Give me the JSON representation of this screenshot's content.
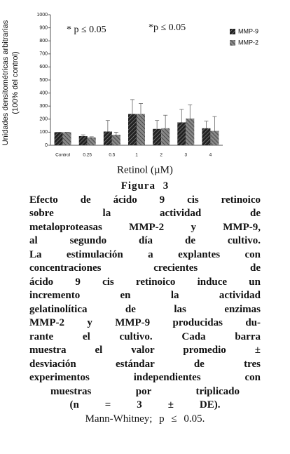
{
  "chart_data": {
    "type": "bar",
    "ylabel": [
      "Unidades densitométricas arbitrarias",
      "(100% del control)"
    ],
    "xlabel": "Retinol (µM)",
    "annotations": [
      "* p ≤ 0.05",
      "*p ≤ 0.05"
    ],
    "categories": [
      "Control",
      "0.25",
      "0.5",
      "1",
      "2",
      "3",
      "4"
    ],
    "series": [
      {
        "name": "MMP-9",
        "color": "#222222",
        "values": [
          100,
          70,
          105,
          240,
          125,
          175,
          130
        ],
        "errors": [
          0,
          10,
          85,
          110,
          65,
          100,
          55
        ]
      },
      {
        "name": "MMP-2",
        "color": "#777777",
        "values": [
          100,
          60,
          80,
          240,
          130,
          205,
          110
        ],
        "errors": [
          0,
          5,
          20,
          80,
          100,
          105,
          110
        ]
      }
    ],
    "ylim": [
      0,
      1000
    ],
    "yticks": [
      0,
      100,
      200,
      300,
      400,
      500,
      600,
      700,
      800,
      900,
      1000
    ],
    "grid": false
  },
  "caption": {
    "lines": [
      "Figura 3",
      "Efecto de ácido 9 cis retinoico",
      "sobre la actividad de",
      "metaloproteasas MMP-2 y MMP-9,",
      "al segundo día de cultivo.",
      "La estimulación a explantes con",
      "concentraciones crecientes de",
      "ácido 9 cis retinoico induce un",
      "incremento en la actividad",
      "gelatinolítica de las enzimas",
      "MMP-2 y MMP-9 producidas du-",
      "rante el cultivo. Cada barra",
      "muestra el valor promedio ±",
      "desviación estándar de tres",
      "experimentos independientes con",
      "muestras por triplicado",
      "(n = 3 ± DE).",
      "Mann-Whitney; p ≤ 0.05."
    ]
  }
}
